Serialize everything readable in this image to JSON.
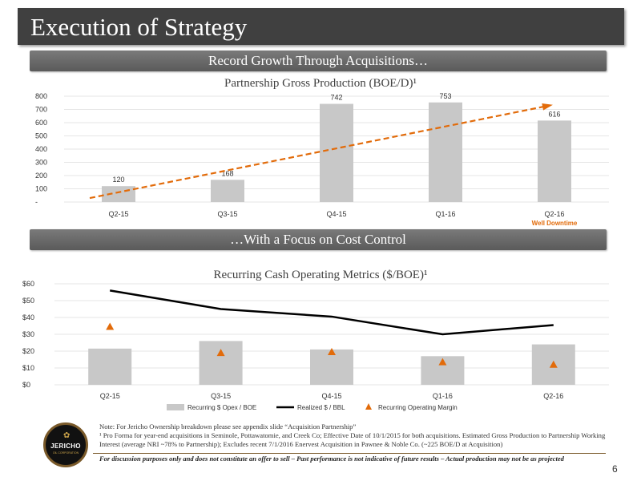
{
  "slide": {
    "title": "Execution of Strategy",
    "section1": "Record Growth Through Acquisitions…",
    "section2": "…With a Focus on Cost Control",
    "page_number": "6"
  },
  "footnotes": {
    "note": "Note: For Jericho Ownership breakdown please see appendix slide “Acquisition Partnership”",
    "pro_forma": "¹ Pro Forma for year-end acquisitions in Seminole, Pottawatomie, and Creek Co; Effective Date of 10/1/2015 for both acquisitions. Estimated Gross Production to Partnership Working Interest (average NRI ~78% to Partnership); Excludes recent 7/1/2016 Enervest Acquisition in Pawnee & Noble Co. (~225 BOE/D at Acquisition)",
    "disclaimer": "For discussion purposes only and does not constitute an offer to sell – Past performance is not indicative of future results – Actual production may not be as projected"
  },
  "logo": {
    "name": "JERICHO",
    "sub": "OIL CORPORATION"
  },
  "colors": {
    "bar": "#c8c8c8",
    "trend": "#e26b0a",
    "line": "#000000",
    "accent": "#e26b0a"
  },
  "chart_data": [
    {
      "type": "bar",
      "title": "Partnership Gross Production (BOE/D)¹",
      "categories": [
        "Q2-15",
        "Q3-15",
        "Q4-15",
        "Q1-16",
        "Q2-16"
      ],
      "values": [
        120,
        168,
        742,
        753,
        616
      ],
      "data_labels": [
        "120",
        "168",
        "742",
        "753",
        "616"
      ],
      "ylim": [
        0,
        800
      ],
      "yticks": [
        "-",
        "100",
        "200",
        "300",
        "400",
        "500",
        "600",
        "700",
        "800"
      ],
      "annotation": "Well Downtime",
      "trendline": "dashed"
    },
    {
      "type": "bar",
      "title": "Recurring Cash Operating Metrics ($/BOE)¹",
      "categories": [
        "Q2-15",
        "Q3-15",
        "Q4-15",
        "Q1-16",
        "Q2-16"
      ],
      "ylim": [
        0,
        60
      ],
      "yticks": [
        "$0",
        "$10",
        "$20",
        "$30",
        "$40",
        "$50",
        "$60"
      ],
      "series": [
        {
          "name": "Recurring $ Opex / BOE",
          "kind": "bar",
          "values": [
            21.5,
            26,
            21,
            17,
            24
          ]
        },
        {
          "name": "Realized $ / BBL",
          "kind": "line",
          "values": [
            56,
            45,
            40.5,
            30,
            35.5
          ]
        },
        {
          "name": "Recurring Operating Margin",
          "kind": "marker",
          "values": [
            34.5,
            19,
            19.5,
            13.5,
            12
          ]
        }
      ]
    }
  ]
}
